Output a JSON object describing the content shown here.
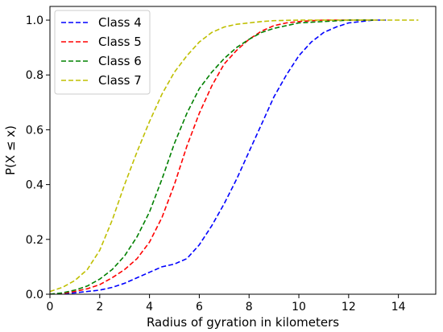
{
  "chart_data": {
    "type": "line",
    "title": "",
    "xlabel": "Radius of gyration in kilometers",
    "ylabel": "P(X ≤ x)",
    "xlim": [
      0,
      15.5
    ],
    "ylim": [
      0,
      1.05
    ],
    "xticks": [
      0,
      2,
      4,
      6,
      8,
      10,
      12,
      14
    ],
    "yticks": [
      0.0,
      0.2,
      0.4,
      0.6,
      0.8,
      1.0
    ],
    "xtick_labels": [
      "0",
      "2",
      "4",
      "6",
      "8",
      "10",
      "12",
      "14"
    ],
    "ytick_labels": [
      "0.0",
      "0.2",
      "0.4",
      "0.6",
      "0.8",
      "1.0"
    ],
    "grid": false,
    "legend_position": "top-left",
    "series": [
      {
        "name": "Class 4",
        "color": "#0000ff",
        "x": [
          0,
          1,
          2,
          2.5,
          3,
          3.5,
          4,
          4.5,
          5,
          5.5,
          6,
          6.5,
          7,
          7.5,
          8,
          8.5,
          9,
          9.5,
          10,
          10.5,
          11,
          11.5,
          12,
          12.5,
          13,
          13.5
        ],
        "y": [
          0.0,
          0.005,
          0.015,
          0.025,
          0.04,
          0.06,
          0.08,
          0.1,
          0.11,
          0.13,
          0.18,
          0.25,
          0.33,
          0.42,
          0.52,
          0.62,
          0.72,
          0.8,
          0.87,
          0.92,
          0.955,
          0.975,
          0.99,
          0.995,
          1.0,
          1.0
        ]
      },
      {
        "name": "Class 5",
        "color": "#ff0000",
        "x": [
          0,
          0.5,
          1,
          1.5,
          2,
          2.5,
          3,
          3.5,
          4,
          4.5,
          5,
          5.5,
          6,
          6.5,
          7,
          7.5,
          8,
          8.5,
          9,
          9.5,
          10,
          10.5,
          11,
          12,
          13
        ],
        "y": [
          0.0,
          0.003,
          0.01,
          0.02,
          0.035,
          0.06,
          0.09,
          0.13,
          0.19,
          0.28,
          0.4,
          0.54,
          0.66,
          0.76,
          0.84,
          0.89,
          0.93,
          0.96,
          0.98,
          0.99,
          0.995,
          0.998,
          1.0,
          1.0,
          1.0
        ]
      },
      {
        "name": "Class 6",
        "color": "#008000",
        "x": [
          0,
          0.5,
          1,
          1.5,
          2,
          2.5,
          3,
          3.5,
          4,
          4.5,
          5,
          5.5,
          6,
          6.5,
          7,
          7.5,
          8,
          8.5,
          9,
          9.5,
          10,
          11,
          12,
          13
        ],
        "y": [
          0.0,
          0.005,
          0.015,
          0.03,
          0.055,
          0.09,
          0.14,
          0.21,
          0.3,
          0.42,
          0.55,
          0.66,
          0.75,
          0.81,
          0.86,
          0.9,
          0.93,
          0.955,
          0.97,
          0.98,
          0.99,
          0.995,
          1.0,
          1.0
        ]
      },
      {
        "name": "Class 7",
        "color": "#bfbf00",
        "x": [
          0,
          0.5,
          1,
          1.5,
          2,
          2.5,
          3,
          3.5,
          4,
          4.5,
          5,
          5.5,
          6,
          6.5,
          7,
          7.5,
          8,
          8.5,
          9,
          10,
          11,
          12,
          13,
          14,
          14.8
        ],
        "y": [
          0.01,
          0.025,
          0.05,
          0.09,
          0.16,
          0.27,
          0.4,
          0.52,
          0.63,
          0.73,
          0.81,
          0.87,
          0.92,
          0.955,
          0.975,
          0.985,
          0.99,
          0.995,
          0.998,
          1.0,
          1.0,
          1.0,
          1.0,
          1.0,
          1.0
        ]
      }
    ]
  }
}
